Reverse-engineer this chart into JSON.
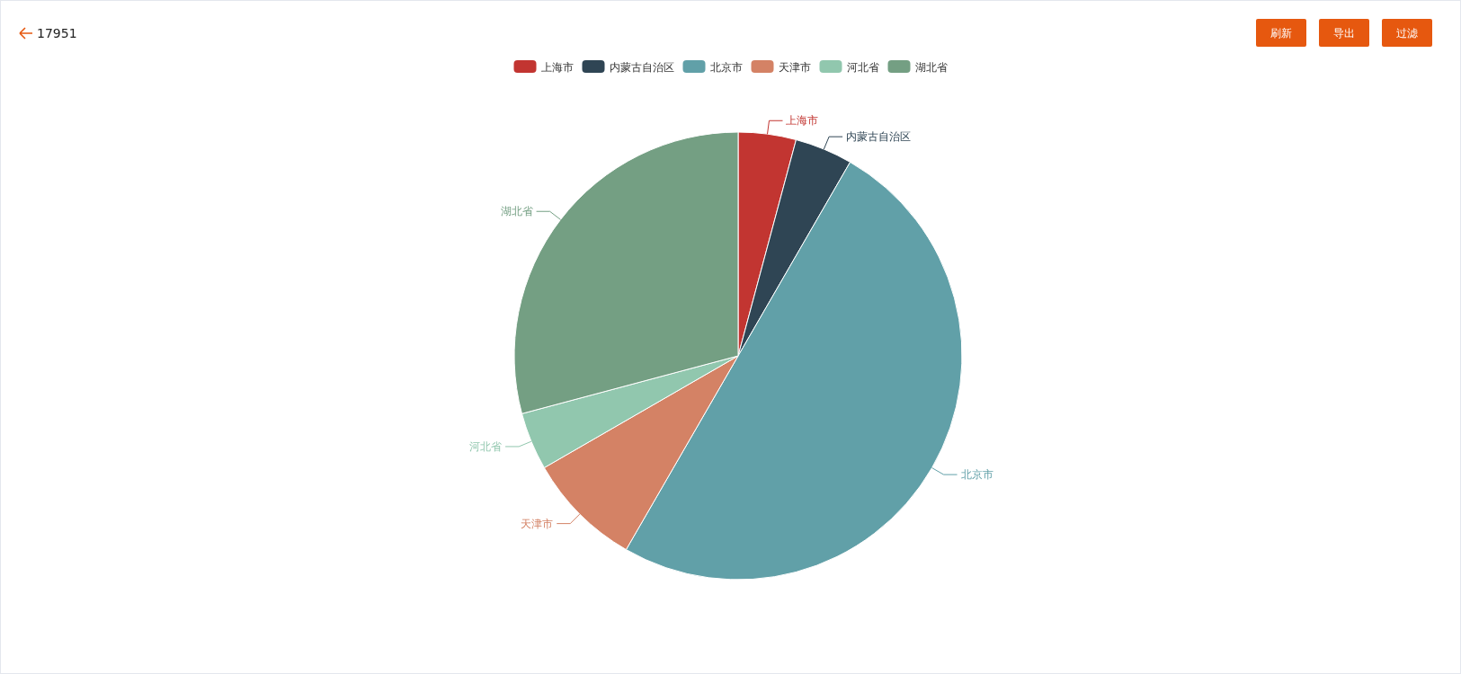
{
  "chart_data": {
    "type": "pie",
    "title": "17951",
    "categories": [
      "上海市",
      "内蒙古自治区",
      "北京市",
      "天津市",
      "河北省",
      "湖北省"
    ],
    "values": [
      4.17,
      4.17,
      50,
      8.33,
      4.17,
      29.16
    ],
    "colors": [
      "#c23531",
      "#2f4554",
      "#61a0a8",
      "#d48265",
      "#91c7ae",
      "#749f83"
    ],
    "legend": "top",
    "annotations": [
      "刷新",
      "导出",
      "过滤"
    ]
  }
}
